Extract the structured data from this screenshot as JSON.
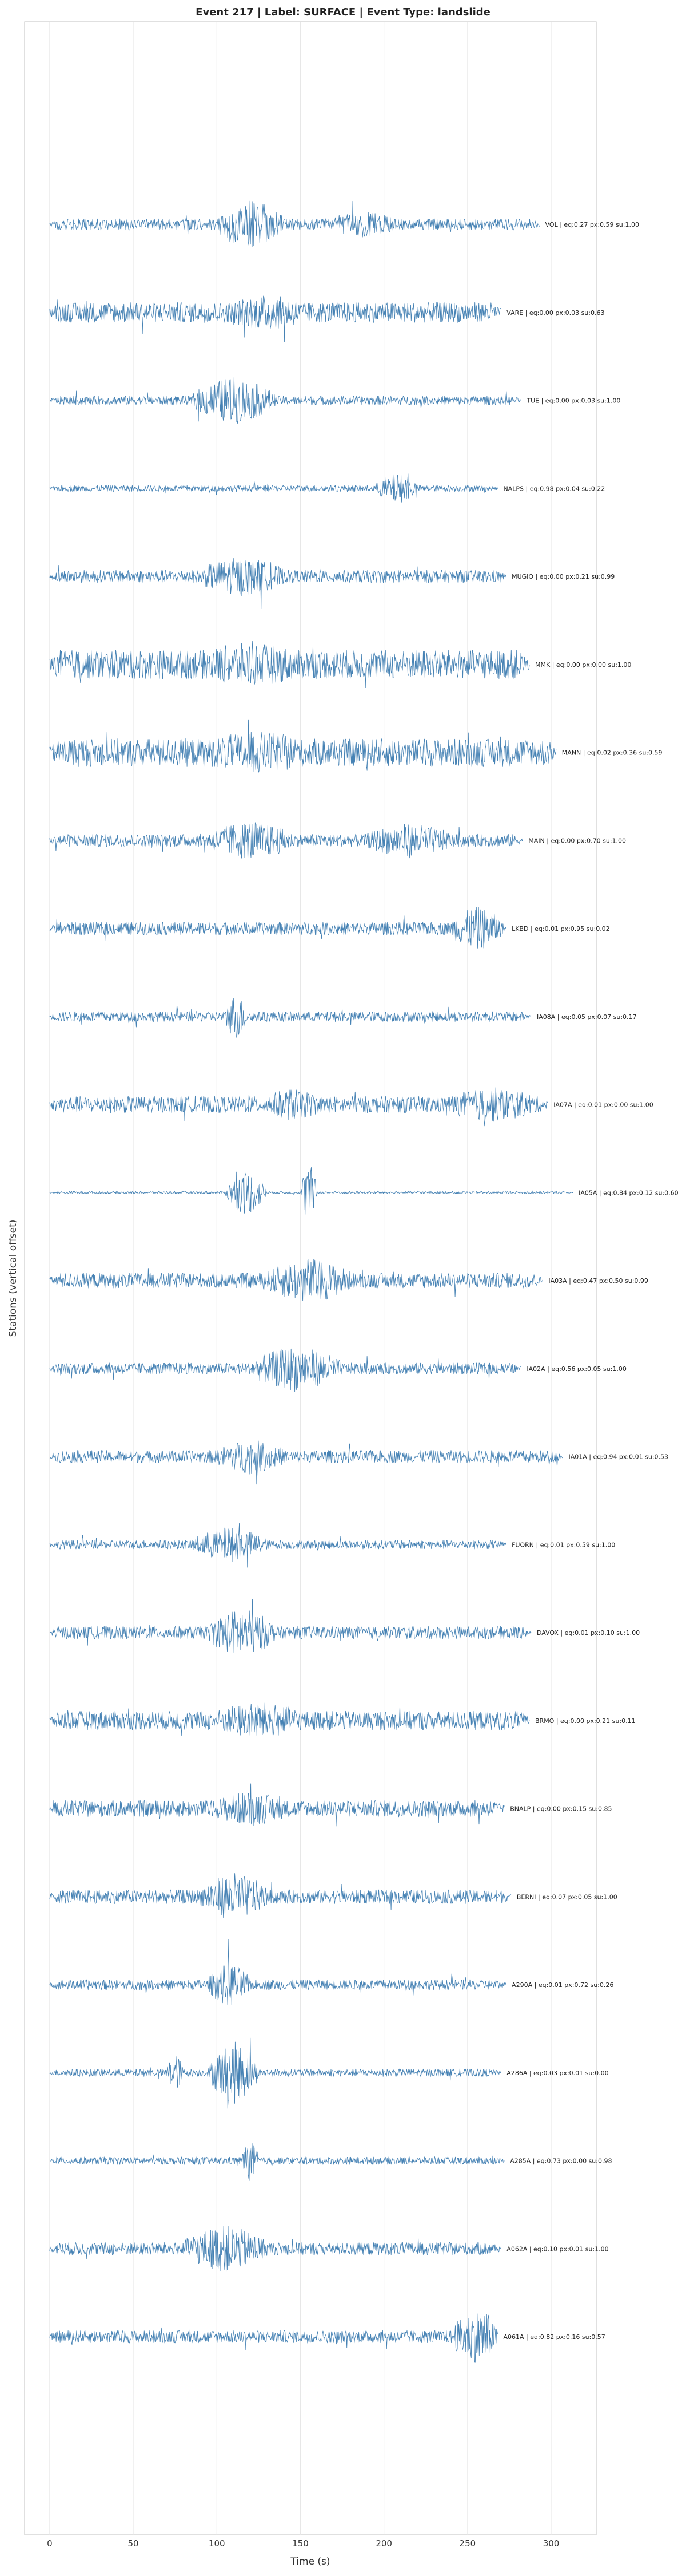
{
  "chart_data": {
    "type": "line",
    "title": "Event 217 | Label: SURFACE | Event Type: landslide",
    "xlabel": "Time (s)",
    "ylabel": "Stations (vertical offset)",
    "xlim": [
      -15,
      327
    ],
    "xticks": [
      0,
      50,
      100,
      150,
      200,
      250,
      300
    ],
    "grid": "x",
    "series_color": "#4682b4",
    "stations": [
      {
        "label": "VOL | eq:0.27 px:0.59 su:1.00",
        "end": 293,
        "amp": 0.9,
        "bursts": [
          [
            100,
            140,
            3.2
          ],
          [
            170,
            205,
            1.2
          ]
        ]
      },
      {
        "label": "VARE | eq:0.00 px:0.03 su:0.63",
        "end": 270,
        "amp": 1.6,
        "bursts": [
          [
            110,
            150,
            1.3
          ]
        ]
      },
      {
        "label": "TUE | eq:0.00 px:0.03 su:1.00",
        "end": 282,
        "amp": 0.7,
        "bursts": [
          [
            85,
            135,
            3.2
          ]
        ]
      },
      {
        "label": "NALPS | eq:0.98 px:0.04 su:0.22",
        "end": 268,
        "amp": 0.5,
        "bursts": [
          [
            195,
            220,
            2.0
          ]
        ]
      },
      {
        "label": "MUGIO | eq:0.00 px:0.21 su:0.99",
        "end": 273,
        "amp": 1.0,
        "bursts": [
          [
            90,
            140,
            2.2
          ]
        ]
      },
      {
        "label": "MMK | eq:0.00 px:0.00 su:1.00",
        "end": 287,
        "amp": 2.3,
        "bursts": [
          [
            95,
            145,
            1.2
          ]
        ]
      },
      {
        "label": "MANN | eq:0.02 px:0.36 su:0.59",
        "end": 303,
        "amp": 2.2,
        "bursts": [
          [
            100,
            150,
            1.2
          ]
        ]
      },
      {
        "label": "MAIN | eq:0.00 px:0.70 su:1.00",
        "end": 283,
        "amp": 1.0,
        "bursts": [
          [
            95,
            145,
            2.2
          ],
          [
            190,
            240,
            1.8
          ]
        ]
      },
      {
        "label": "LKBD | eq:0.01 px:0.95 su:0.02",
        "end": 273,
        "amp": 1.0,
        "bursts": [
          [
            240,
            272,
            2.5
          ]
        ]
      },
      {
        "label": "IA08A | eq:0.05 px:0.07 su:0.17",
        "end": 288,
        "amp": 0.8,
        "bursts": [
          [
            105,
            118,
            3.0
          ]
        ]
      },
      {
        "label": "IA07A | eq:0.01 px:0.00 su:1.00",
        "end": 298,
        "amp": 1.3,
        "bursts": [
          [
            130,
            160,
            1.3
          ],
          [
            240,
            290,
            1.5
          ]
        ]
      },
      {
        "label": "IA05A | eq:0.84 px:0.12 su:0.60",
        "end": 313,
        "amp": 0.2,
        "bursts": [
          [
            105,
            130,
            3.5
          ],
          [
            150,
            160,
            5.0
          ]
        ]
      },
      {
        "label": "IA03A | eq:0.47 px:0.50 su:0.99",
        "end": 295,
        "amp": 1.2,
        "bursts": [
          [
            130,
            180,
            2.5
          ]
        ]
      },
      {
        "label": "IA02A | eq:0.56 px:0.05 su:1.00",
        "end": 282,
        "amp": 0.9,
        "bursts": [
          [
            120,
            175,
            2.8
          ]
        ]
      },
      {
        "label": "IA01A | eq:0.94 px:0.01 su:0.53",
        "end": 307,
        "amp": 1.0,
        "bursts": [
          [
            100,
            140,
            1.8
          ]
        ]
      },
      {
        "label": "FUORN | eq:0.01 px:0.59 su:1.00",
        "end": 273,
        "amp": 0.7,
        "bursts": [
          [
            85,
            130,
            2.2
          ]
        ]
      },
      {
        "label": "DAVOX | eq:0.01 px:0.10 su:1.00",
        "end": 288,
        "amp": 1.0,
        "bursts": [
          [
            95,
            135,
            3.0
          ]
        ]
      },
      {
        "label": "BRMO | eq:0.00 px:0.21 su:0.11",
        "end": 287,
        "amp": 1.5,
        "bursts": [
          [
            100,
            150,
            1.5
          ]
        ]
      },
      {
        "label": "BNALP | eq:0.00 px:0.15 su:0.85",
        "end": 272,
        "amp": 1.3,
        "bursts": [
          [
            100,
            140,
            1.5
          ]
        ]
      },
      {
        "label": "BERNI | eq:0.07 px:0.05 su:1.00",
        "end": 276,
        "amp": 1.1,
        "bursts": [
          [
            90,
            130,
            2.8
          ]
        ]
      },
      {
        "label": "A290A | eq:0.01 px:0.72 su:0.26",
        "end": 273,
        "amp": 0.8,
        "bursts": [
          [
            95,
            120,
            2.8
          ]
        ]
      },
      {
        "label": "A286A | eq:0.03 px:0.01 su:0.00",
        "end": 270,
        "amp": 0.6,
        "bursts": [
          [
            70,
            80,
            2.5
          ],
          [
            95,
            125,
            4.5
          ]
        ]
      },
      {
        "label": "A285A | eq:0.73 px:0.00 su:0.98",
        "end": 272,
        "amp": 0.6,
        "bursts": [
          [
            115,
            125,
            2.8
          ]
        ]
      },
      {
        "label": "A062A | eq:0.10 px:0.01 su:1.00",
        "end": 270,
        "amp": 1.0,
        "bursts": [
          [
            80,
            130,
            2.8
          ]
        ]
      },
      {
        "label": "A061A | eq:0.82 px:0.16 su:0.57",
        "end": 268,
        "amp": 1.0,
        "bursts": [
          [
            240,
            275,
            3.5
          ]
        ]
      }
    ]
  }
}
